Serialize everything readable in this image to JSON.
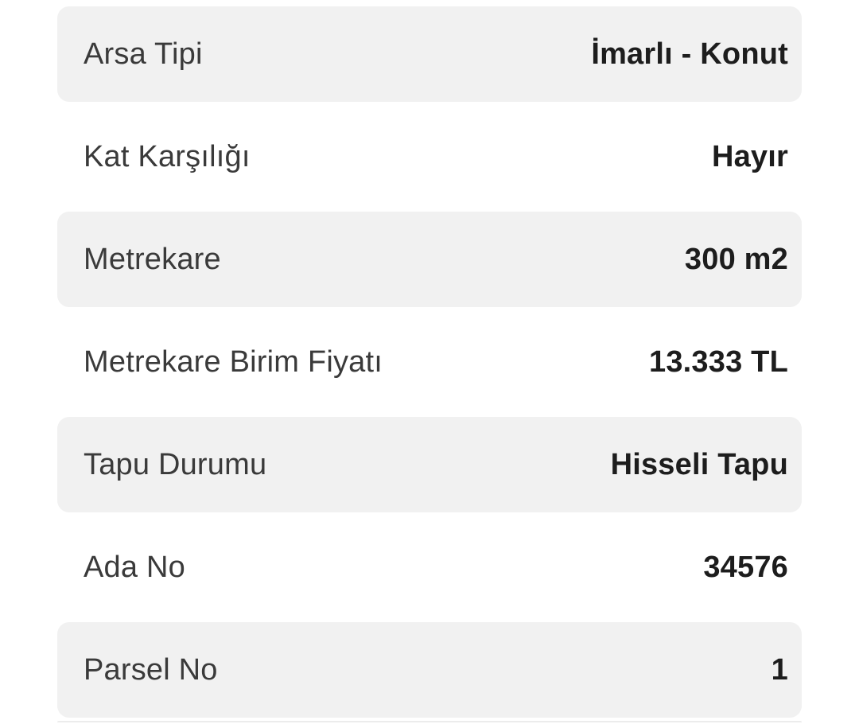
{
  "page": {
    "background": "#ffffff"
  },
  "colors": {
    "row_alt_background": "#f1f1f1",
    "label_text": "#3a3a3a",
    "value_text": "#1d1d1d"
  },
  "listing_details": {
    "rows": [
      {
        "label": "Arsa Tipi",
        "value": "İmarlı - Konut"
      },
      {
        "label": "Kat Karşılığı",
        "value": "Hayır"
      },
      {
        "label": "Metrekare",
        "value": "300 m2"
      },
      {
        "label": "Metrekare Birim Fiyatı",
        "value": "13.333 TL"
      },
      {
        "label": "Tapu Durumu",
        "value": "Hisseli Tapu"
      },
      {
        "label": "Ada No",
        "value": "34576"
      },
      {
        "label": "Parsel No",
        "value": "1"
      }
    ]
  }
}
